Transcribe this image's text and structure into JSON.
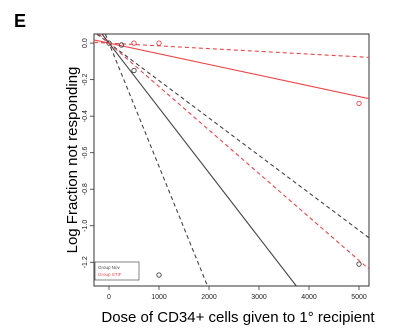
{
  "panel_label": "E",
  "chart_data": {
    "type": "scatter",
    "title": "",
    "xlabel": "Dose of CD34+ cells given to 1° recipient",
    "ylabel": "Log Fraction not responding",
    "xlim": [
      -300,
      5200
    ],
    "ylim": [
      -1.33,
      0.05
    ],
    "x_ticks": [
      0,
      1000,
      2000,
      3000,
      4000,
      5000
    ],
    "x_tick_labels": [
      "0",
      "1000",
      "2000",
      "3000",
      "4000",
      "5000"
    ],
    "y_ticks": [
      0.0,
      -0.2,
      -0.4,
      -0.6,
      -0.8,
      -1.0,
      -1.2
    ],
    "y_tick_labels": [
      "0.0",
      "-0.2",
      "-0.4",
      "-0.6",
      "-0.8",
      "-1.0",
      "-1.2"
    ],
    "grid": false,
    "legend_position": "bottom-left",
    "colors": {
      "group_nov": "#444444",
      "group_stif": "#e8474b"
    },
    "legend": [
      {
        "label": "Group Nov",
        "color": "#444444"
      },
      {
        "label": "Group STIF",
        "color": "#e8474b"
      }
    ],
    "points": [
      {
        "group": "Group Nov",
        "x": 0,
        "y": 0.0
      },
      {
        "group": "Group Nov",
        "x": 250,
        "y": -0.01
      },
      {
        "group": "Group Nov",
        "x": 500,
        "y": -0.15
      },
      {
        "group": "Group Nov",
        "x": 1000,
        "y": -1.27
      },
      {
        "group": "Group Nov",
        "x": 5000,
        "y": -1.21
      },
      {
        "group": "Group STIF",
        "x": 500,
        "y": 0.0
      },
      {
        "group": "Group STIF",
        "x": 1000,
        "y": 0.0
      },
      {
        "group": "Group STIF",
        "x": 5000,
        "y": -0.33
      }
    ],
    "lines": [
      {
        "group": "Group Nov",
        "style": "solid",
        "slope": -0.000355
      },
      {
        "group": "Group Nov",
        "style": "dashed",
        "slope": -0.000675
      },
      {
        "group": "Group Nov",
        "style": "dashed",
        "slope": -0.000205
      },
      {
        "group": "Group STIF",
        "style": "solid",
        "slope": -5.85e-05
      },
      {
        "group": "Group STIF",
        "style": "dashed",
        "slope": -1.5e-05
      },
      {
        "group": "Group STIF",
        "style": "dashed",
        "slope": -0.000238
      }
    ]
  }
}
